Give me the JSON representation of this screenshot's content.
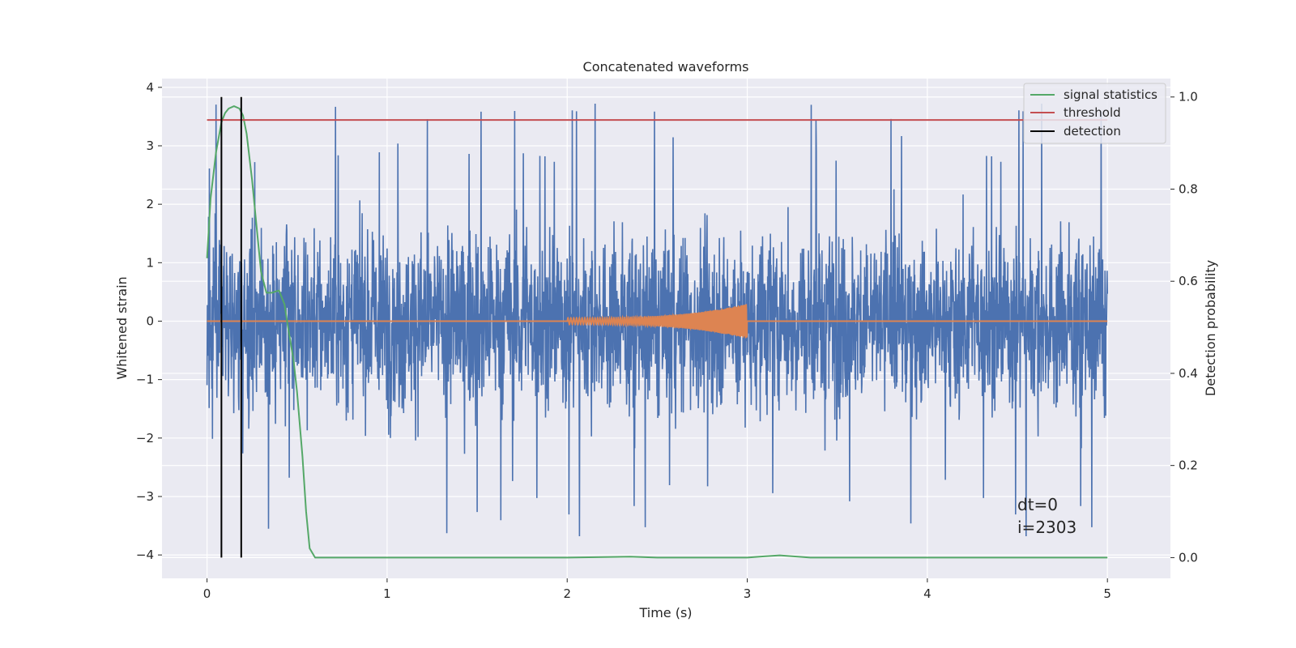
{
  "chart_data": {
    "type": "line",
    "title": "Concatenated waveforms",
    "xlabel": "Time (s)",
    "ylabel_left": "Whitened strain",
    "ylabel_right": "Detection probability",
    "xlim": [
      -0.25,
      5.35
    ],
    "ylim_left": [
      -4.4,
      4.15
    ],
    "ylim_right": [
      -0.045,
      1.04
    ],
    "xticks": [
      0,
      1,
      2,
      3,
      4,
      5
    ],
    "xtick_labels": [
      "0",
      "1",
      "2",
      "3",
      "4",
      "5"
    ],
    "yticks_left": [
      -4,
      -3,
      -2,
      -1,
      0,
      1,
      2,
      3,
      4
    ],
    "ytick_labels_left": [
      "−4",
      "−3",
      "−2",
      "−1",
      "0",
      "1",
      "2",
      "3",
      "4"
    ],
    "yticks_right": [
      0.0,
      0.2,
      0.4,
      0.6,
      0.8,
      1.0
    ],
    "ytick_labels_right": [
      "0.0",
      "0.2",
      "0.4",
      "0.6",
      "0.8",
      "1.0"
    ],
    "grid": true,
    "legend_position": "top-right",
    "colors": {
      "strain": "#4c72b0",
      "injection": "#dd8452",
      "signal_statistics": "#55a868",
      "threshold": "#c44e52",
      "detection": "#000000",
      "background": "#eaeaf2",
      "grid": "#ffffff"
    },
    "series": [
      {
        "name": "signal statistics",
        "axis": "right",
        "x": [
          0,
          0.02,
          0.05,
          0.08,
          0.1,
          0.12,
          0.15,
          0.18,
          0.2,
          0.22,
          0.25,
          0.28,
          0.3,
          0.33,
          0.36,
          0.4,
          0.43,
          0.45,
          0.48,
          0.5,
          0.53,
          0.55,
          0.57,
          0.6,
          0.8,
          1.0,
          1.5,
          2.0,
          2.35,
          2.5,
          3.0,
          3.1,
          3.18,
          3.25,
          3.35,
          3.5,
          4.0,
          4.5,
          5.0
        ],
        "y": [
          0.65,
          0.78,
          0.88,
          0.945,
          0.965,
          0.975,
          0.98,
          0.975,
          0.96,
          0.92,
          0.82,
          0.7,
          0.62,
          0.575,
          0.575,
          0.58,
          0.55,
          0.5,
          0.43,
          0.36,
          0.22,
          0.1,
          0.02,
          0.0,
          0.0,
          0.0,
          0.0,
          0.0,
          0.002,
          0.0,
          0.0,
          0.003,
          0.005,
          0.003,
          0.0,
          0.0,
          0.0,
          0.0,
          0.0
        ]
      },
      {
        "name": "threshold",
        "axis": "right",
        "x": [
          0,
          5
        ],
        "y": [
          0.95,
          0.95
        ]
      },
      {
        "name": "detection",
        "axis": "right",
        "x": [
          0.08,
          0.19
        ],
        "y_range": [
          0.0,
          1.0
        ]
      }
    ],
    "strain_noise": {
      "axis": "left",
      "x_range": [
        0,
        5
      ],
      "spread": 1.0
    },
    "injection_chirp": {
      "axis": "left",
      "x_range": [
        2.0,
        3.0
      ],
      "amplitude_start": 0.06,
      "amplitude_end": 0.3
    },
    "legend": [
      "signal statistics",
      "threshold",
      "detection"
    ],
    "annotations": [
      "dt=0",
      "i=2303"
    ]
  }
}
